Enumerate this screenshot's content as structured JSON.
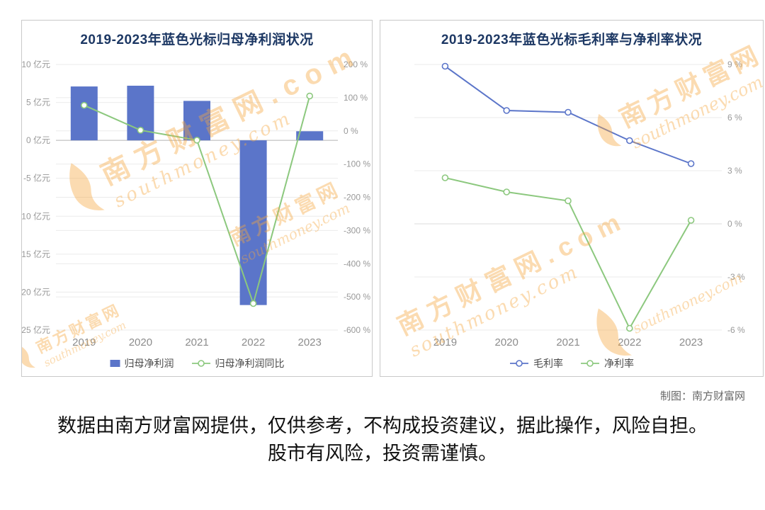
{
  "page": {
    "credit": "制图：南方财富网",
    "disclaimer_line1": "数据由南方财富网提供，仅供参考，不构成投资建议，据此操作，风险自担。",
    "disclaimer_line2": "股市有风险，投资需谨慎。"
  },
  "watermark": {
    "name_cn": "南方财富网",
    "domain": "southmoney.com",
    "dot_com": ".com"
  },
  "colors": {
    "bar": "#5b75c9",
    "blue": "#5b75c9",
    "green": "#8cc87e",
    "title": "#1d3864",
    "axis_text": "#999999",
    "grid": "#ebebeb",
    "zero_line": "#b3b3b3",
    "watermark": "#f6a73e",
    "panel_border": "#c9c9c9"
  },
  "chart_data": [
    {
      "type": "bar+line",
      "title": "2019-2023年蓝色光标归母净利润状况",
      "categories": [
        "2019",
        "2020",
        "2021",
        "2022",
        "2023"
      ],
      "series": [
        {
          "name": "归母净利润",
          "marker": "bar",
          "color_key": "bar",
          "axis": "left",
          "unit": "亿元",
          "values": [
            7.1,
            7.2,
            5.2,
            -21.7,
            1.2
          ]
        },
        {
          "name": "归母净利润同比",
          "marker": "line",
          "color_key": "green",
          "axis": "right",
          "unit": "%",
          "values": [
            77,
            2,
            -28,
            -520,
            105
          ]
        }
      ],
      "left_axis": {
        "min": -25,
        "max": 10,
        "step": 5,
        "unit": "亿元"
      },
      "right_axis": {
        "min": -600,
        "max": 200,
        "step": 100,
        "unit": "%"
      },
      "legend_position": "bottom",
      "grid": true
    },
    {
      "type": "line",
      "title": "2019-2023年蓝色光标毛利率与净利率状况",
      "categories": [
        "2019",
        "2020",
        "2021",
        "2022",
        "2023"
      ],
      "series": [
        {
          "name": "毛利率",
          "marker": "line",
          "color_key": "blue",
          "values": [
            8.9,
            6.4,
            6.3,
            4.7,
            3.4
          ]
        },
        {
          "name": "净利率",
          "marker": "line",
          "color_key": "green",
          "values": [
            2.6,
            1.8,
            1.3,
            -5.9,
            0.2
          ]
        }
      ],
      "axis": {
        "min": -6,
        "max": 9,
        "step": 3,
        "unit": "%"
      },
      "legend_position": "bottom",
      "grid": true
    }
  ]
}
